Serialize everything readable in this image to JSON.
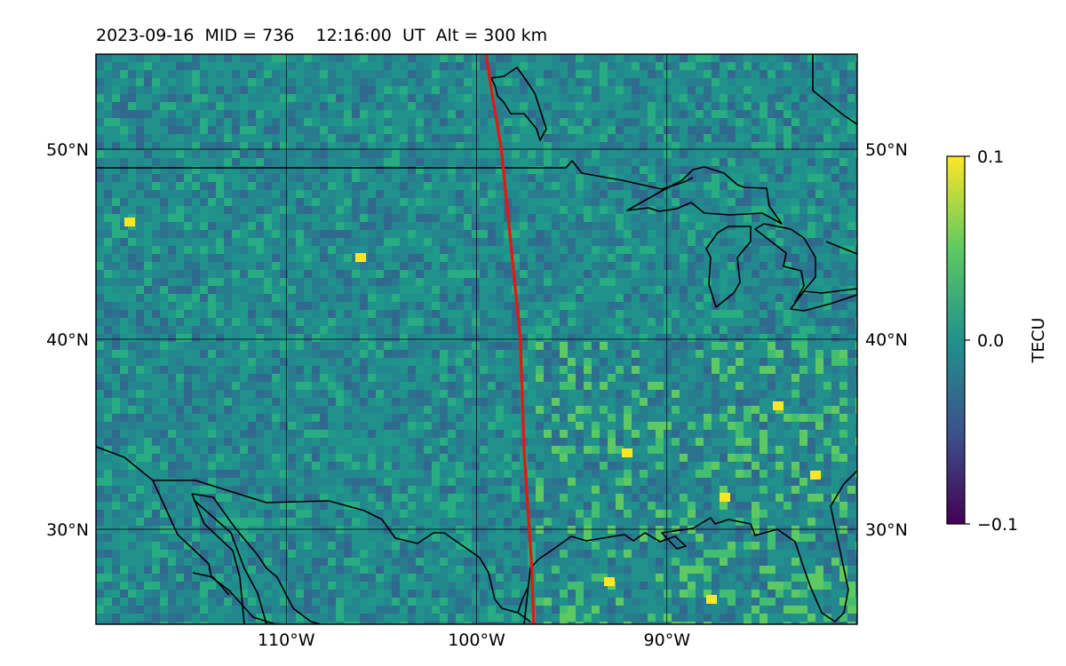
{
  "title": "2023-09-16  MID = 736    12:16:00  UT  Alt = 300 km",
  "map": {
    "lon_range": [
      -120,
      -80
    ],
    "lat_range": [
      25,
      55
    ],
    "lon_ticks": [
      {
        "lon": -110,
        "label": "110°W"
      },
      {
        "lon": -100,
        "label": "100°W"
      },
      {
        "lon": -90,
        "label": "90°W"
      }
    ],
    "lat_ticks": [
      {
        "lat": 30,
        "label": "30°N"
      },
      {
        "lat": 40,
        "label": "40°N"
      },
      {
        "lat": 50,
        "label": "50°N"
      }
    ],
    "grid": true,
    "terminator_color": "#e8160c",
    "terminator": [
      [
        -99.5,
        55
      ],
      [
        -99.2,
        53
      ],
      [
        -98.7,
        50
      ],
      [
        -98.4,
        47
      ],
      [
        -98.0,
        43
      ],
      [
        -97.7,
        40
      ],
      [
        -97.6,
        37
      ],
      [
        -97.5,
        34
      ],
      [
        -97.3,
        31
      ],
      [
        -97.1,
        28
      ],
      [
        -97.0,
        25
      ]
    ]
  },
  "colorbar": {
    "label": "TECU",
    "min": -0.1,
    "max": 0.1,
    "ticks": [
      {
        "value": 0.1,
        "label": "0.1"
      },
      {
        "value": 0.0,
        "label": "0.0"
      },
      {
        "value": -0.1,
        "label": "−0.1"
      }
    ],
    "colormap": [
      "#440154",
      "#3b528b",
      "#21918c",
      "#5ec962",
      "#fde725"
    ]
  }
}
